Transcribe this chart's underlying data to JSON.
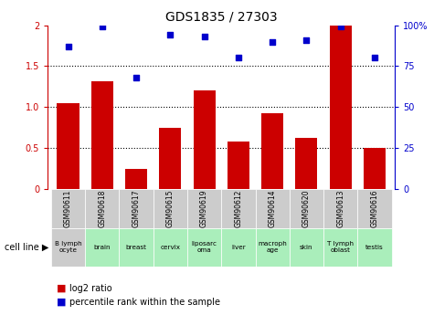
{
  "title": "GDS1835 / 27303",
  "samples": [
    "GSM90611",
    "GSM90618",
    "GSM90617",
    "GSM90615",
    "GSM90619",
    "GSM90612",
    "GSM90614",
    "GSM90620",
    "GSM90613",
    "GSM90616"
  ],
  "cell_lines": [
    "B lymph\nocyte",
    "brain",
    "breast",
    "cervix",
    "liposarc\noma",
    "liver",
    "macroph\nage",
    "skin",
    "T lymph\noblast",
    "testis"
  ],
  "log2_ratio": [
    1.05,
    1.32,
    0.25,
    0.75,
    1.2,
    0.58,
    0.92,
    0.62,
    2.0,
    0.5
  ],
  "percentile_rank": [
    87,
    99,
    68,
    94,
    93,
    80,
    90,
    91,
    99,
    80
  ],
  "bar_color": "#cc0000",
  "dot_color": "#0000cc",
  "ylim_left": [
    0,
    2.0
  ],
  "ylim_right": [
    0,
    100
  ],
  "yticks_left": [
    0,
    0.5,
    1.0,
    1.5,
    2.0
  ],
  "ytick_labels_left": [
    "0",
    "0.5",
    "1.0",
    "1.5",
    "2"
  ],
  "ytick_labels_right": [
    "0",
    "25",
    "50",
    "75",
    "100%"
  ],
  "cell_line_bg_gray": "#cccccc",
  "cell_line_bg_green": "#aaeebb",
  "legend_red_label": "log2 ratio",
  "legend_blue_label": "percentile rank within the sample"
}
